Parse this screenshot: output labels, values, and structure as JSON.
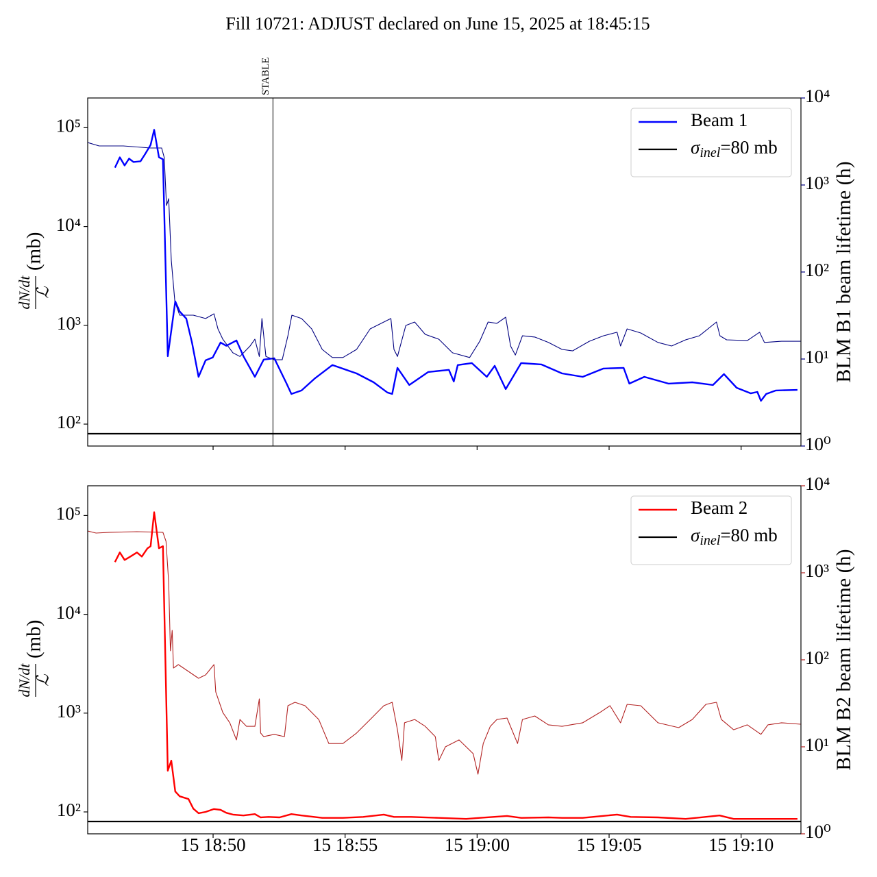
{
  "title": "Fill 10721: ADJUST declared on June 15, 2025 at 18:45:15",
  "chart_data": [
    {
      "type": "line",
      "ylabel": {
        "numerator": "dN/dt",
        "denominator": "ℒ",
        "unit": "(mb)"
      },
      "y2label": "BLM B1 beam lifetime (h)",
      "y2color": "#000080",
      "logy": true,
      "logy2": true,
      "ylim": [
        60,
        200000
      ],
      "yticks": [
        {
          "value": 100,
          "label": "10²"
        },
        {
          "value": 1000,
          "label": "10³"
        },
        {
          "value": 10000,
          "label": "10⁴"
        },
        {
          "value": 100000,
          "label": "10⁵"
        }
      ],
      "y2lim": [
        1,
        10000
      ],
      "y2ticks": [
        {
          "value": 1,
          "label": "10⁰"
        },
        {
          "value": 10,
          "label": "10¹"
        },
        {
          "value": 100,
          "label": "10²"
        },
        {
          "value": 1000,
          "label": "10³"
        },
        {
          "value": 10000,
          "label": "10⁴"
        }
      ],
      "legend": "upper right",
      "annotations": [
        {
          "text": "STABLE",
          "x": "18:52:16"
        }
      ],
      "hline": {
        "symbol": "σ",
        "subscript": "inel",
        "text": "=80 mb",
        "value": 80,
        "color": "#000000"
      },
      "series": [
        {
          "name": "Beam 1",
          "color": "#0000ff",
          "x": [
            "18:46:17",
            "18:46:28",
            "18:46:39",
            "18:46:49",
            "18:46:59",
            "18:47:15",
            "18:47:26",
            "18:47:38",
            "18:47:46",
            "18:47:57",
            "18:48:06",
            "18:48:17",
            "18:48:34",
            "18:48:44",
            "18:48:59",
            "18:49:12",
            "18:49:27",
            "18:49:43",
            "18:49:59",
            "18:50:17",
            "18:50:30",
            "18:50:53",
            "18:51:09",
            "18:51:35",
            "18:51:55",
            "18:52:19",
            "18:52:47",
            "18:52:58",
            "18:53:21",
            "18:53:52",
            "18:54:31",
            "18:55:26",
            "18:56:05",
            "18:56:36",
            "18:56:47",
            "18:56:59",
            "18:57:26",
            "18:58:09",
            "18:58:56",
            "18:59:07",
            "18:59:16",
            "18:59:48",
            "19:00:22",
            "19:00:40",
            "19:01:05",
            "19:01:40",
            "19:02:26",
            "19:03:13",
            "19:04:00",
            "19:04:47",
            "19:05:33",
            "19:05:46",
            "19:06:20",
            "19:07:15",
            "19:08:09",
            "19:08:56",
            "19:09:21",
            "19:09:50",
            "19:10:22",
            "19:10:37",
            "19:10:45",
            "19:10:57",
            "19:11:19",
            "19:12:08"
          ],
          "values": [
            39500,
            50200,
            41500,
            48700,
            45000,
            45700,
            54500,
            67000,
            95300,
            50200,
            48000,
            487,
            1750,
            1380,
            1170,
            670,
            301,
            442,
            472,
            670,
            620,
            703,
            487,
            301,
            450,
            464,
            257,
            202,
            219,
            292,
            396,
            326,
            265,
            209,
            202,
            371,
            249,
            337,
            354,
            270,
            396,
            415,
            301,
            389,
            226,
            415,
            402,
            326,
            301,
            365,
            371,
            257,
            301,
            257,
            265,
            249,
            321,
            233,
            205,
            212,
            172,
            202,
            219,
            222
          ]
        },
        {
          "color": "#000080",
          "axis": "y2",
          "x": [
            "18:45:15",
            "18:45:41",
            "18:46:36",
            "18:47:38",
            "18:48:03",
            "18:48:09",
            "18:48:14",
            "18:48:19",
            "18:48:25",
            "18:48:33",
            "18:48:44",
            "18:49:15",
            "18:49:43",
            "18:50:02",
            "18:50:11",
            "18:50:22",
            "18:50:45",
            "18:51:01",
            "18:51:24",
            "18:51:35",
            "18:51:45",
            "18:51:51",
            "18:52:00",
            "18:52:19",
            "18:52:37",
            "18:52:50",
            "18:52:59",
            "18:53:21",
            "18:53:44",
            "18:54:08",
            "18:54:31",
            "18:54:55",
            "18:55:26",
            "18:55:57",
            "18:56:28",
            "18:56:44",
            "18:56:51",
            "18:56:59",
            "18:57:18",
            "18:57:38",
            "18:58:02",
            "18:58:33",
            "18:59:04",
            "18:59:43",
            "19:00:06",
            "19:00:25",
            "19:00:45",
            "19:01:05",
            "19:01:16",
            "19:01:27",
            "19:01:43",
            "19:02:11",
            "19:02:42",
            "19:03:13",
            "19:03:37",
            "19:04:15",
            "19:04:47",
            "19:05:18",
            "19:05:26",
            "19:05:41",
            "19:06:12",
            "19:06:51",
            "19:07:22",
            "19:07:54",
            "19:08:25",
            "19:09:04",
            "19:09:12",
            "19:09:27",
            "19:10:14",
            "19:10:42",
            "19:10:53",
            "19:11:32",
            "19:12:15"
          ],
          "values": [
            3080,
            2810,
            2810,
            2660,
            2660,
            2070,
            580,
            696,
            136,
            45.9,
            31.9,
            31.9,
            29.2,
            33.1,
            22.2,
            16.9,
            11.8,
            10.7,
            14.1,
            16.9,
            10.7,
            29.2,
            10.7,
            9.8,
            9.8,
            18.5,
            31.9,
            29.2,
            22.2,
            12.9,
            10.4,
            10.4,
            12.9,
            22.2,
            26.6,
            29.2,
            12.9,
            10.7,
            24.3,
            26.6,
            19.2,
            16.9,
            11.8,
            10.4,
            16.0,
            26.6,
            25.7,
            30.2,
            14.1,
            11.1,
            18.5,
            17.9,
            15.5,
            12.9,
            12.4,
            16.0,
            18.5,
            20.3,
            14.1,
            22.2,
            19.9,
            15.5,
            14.1,
            16.6,
            18.5,
            26.6,
            18.5,
            16.6,
            16.3,
            20.3,
            15.5,
            16.0,
            16.0
          ]
        }
      ]
    },
    {
      "type": "line",
      "ylabel": {
        "numerator": "dN/dt",
        "denominator": "ℒ",
        "unit": "(mb)"
      },
      "y2label": "BLM B2 beam lifetime (h)",
      "y2color": "#b22222",
      "logy": true,
      "logy2": true,
      "xlim": [
        "18:45:15",
        "19:12:16"
      ],
      "xticks": [
        {
          "value": "18:50:00",
          "label": "15 18:50"
        },
        {
          "value": "18:55:00",
          "label": "15 18:55"
        },
        {
          "value": "19:00:00",
          "label": "15 19:00"
        },
        {
          "value": "19:05:00",
          "label": "15 19:05"
        },
        {
          "value": "19:10:00",
          "label": "15 19:10"
        }
      ],
      "ylim": [
        60,
        200000
      ],
      "yticks": [
        {
          "value": 100,
          "label": "10²"
        },
        {
          "value": 1000,
          "label": "10³"
        },
        {
          "value": 10000,
          "label": "10⁴"
        },
        {
          "value": 100000,
          "label": "10⁵"
        }
      ],
      "y2lim": [
        1,
        10000
      ],
      "y2ticks": [
        {
          "value": 1,
          "label": "10⁰"
        },
        {
          "value": 10,
          "label": "10¹"
        },
        {
          "value": 100,
          "label": "10²"
        },
        {
          "value": 1000,
          "label": "10³"
        },
        {
          "value": 10000,
          "label": "10⁴"
        }
      ],
      "legend": "upper right",
      "hline": {
        "symbol": "σ",
        "subscript": "inel",
        "text": "=80 mb",
        "value": 80,
        "color": "#000000"
      },
      "series": [
        {
          "name": "Beam 2",
          "color": "#ff0000",
          "x": [
            "18:46:17",
            "18:46:28",
            "18:46:39",
            "18:46:52",
            "18:47:07",
            "18:47:18",
            "18:47:31",
            "18:47:38",
            "18:47:46",
            "18:47:57",
            "18:48:06",
            "18:48:17",
            "18:48:25",
            "18:48:34",
            "18:48:44",
            "18:49:04",
            "18:49:15",
            "18:49:27",
            "18:49:43",
            "18:50:02",
            "18:50:17",
            "18:50:30",
            "18:50:45",
            "18:51:09",
            "18:51:35",
            "18:51:48",
            "18:52:06",
            "18:52:31",
            "18:52:58",
            "18:53:21",
            "18:54:08",
            "18:54:55",
            "18:55:41",
            "18:56:28",
            "18:56:51",
            "18:57:30",
            "18:58:33",
            "18:59:35",
            "19:00:06",
            "19:01:08",
            "19:01:40",
            "19:02:42",
            "19:03:13",
            "19:04:00",
            "19:05:18",
            "19:05:49",
            "19:06:51",
            "19:07:54",
            "19:09:11",
            "19:09:43",
            "19:11:01",
            "19:12:08"
          ],
          "values": [
            33800,
            42300,
            35500,
            38400,
            42300,
            38400,
            46600,
            48900,
            108000,
            46600,
            48900,
            261,
            331,
            161,
            144,
            135,
            108,
            97,
            100,
            107,
            105,
            98,
            94,
            92,
            95,
            88,
            89,
            88,
            95,
            92,
            87,
            87,
            89,
            94,
            89,
            89,
            87,
            85,
            87,
            91,
            87,
            88,
            87,
            87,
            94,
            89,
            88,
            85,
            92,
            85,
            85,
            85
          ]
        },
        {
          "color": "#b22222",
          "axis": "y2",
          "x": [
            "18:45:15",
            "18:45:34",
            "18:46:05",
            "18:47:07",
            "18:48:06",
            "18:48:13",
            "18:48:19",
            "18:48:23",
            "18:48:27",
            "18:48:30",
            "18:48:41",
            "18:49:04",
            "18:49:27",
            "18:49:43",
            "18:50:02",
            "18:50:06",
            "18:50:22",
            "18:50:38",
            "18:50:53",
            "18:51:01",
            "18:51:16",
            "18:51:35",
            "18:51:45",
            "18:51:48",
            "18:51:55",
            "18:52:19",
            "18:52:42",
            "18:52:50",
            "18:53:06",
            "18:53:29",
            "18:54:00",
            "18:54:23",
            "18:54:55",
            "18:55:26",
            "18:55:57",
            "18:56:28",
            "18:56:47",
            "18:56:59",
            "18:57:09",
            "18:57:15",
            "18:57:38",
            "18:58:02",
            "18:58:25",
            "18:58:33",
            "18:58:48",
            "18:59:19",
            "18:59:51",
            "19:00:02",
            "19:00:14",
            "19:00:30",
            "19:00:45",
            "19:01:08",
            "19:01:32",
            "19:01:43",
            "19:02:11",
            "19:02:42",
            "19:03:13",
            "19:04:00",
            "19:04:39",
            "19:05:02",
            "19:05:26",
            "19:05:41",
            "19:06:12",
            "19:06:51",
            "19:07:38",
            "19:08:09",
            "19:08:40",
            "19:09:04",
            "19:09:15",
            "19:09:43",
            "19:10:14",
            "19:10:45",
            "19:11:01",
            "19:11:32",
            "19:12:15"
          ],
          "values": [
            3020,
            2860,
            2920,
            2970,
            2920,
            2300,
            776,
            127,
            218,
            80.5,
            88.1,
            73.5,
            61.3,
            67.1,
            88.1,
            42.7,
            24.8,
            18.9,
            12.0,
            20.6,
            17.2,
            17.2,
            35.6,
            14.4,
            13.1,
            13.9,
            13.1,
            29.7,
            32.5,
            29.7,
            20.6,
            10.9,
            10.9,
            14.4,
            20.6,
            29.7,
            32.5,
            15.7,
            6.96,
            18.9,
            20.6,
            17.2,
            13.1,
            6.96,
            10.0,
            12.0,
            8.34,
            4.84,
            10.9,
            17.2,
            20.6,
            21.4,
            10.9,
            20.6,
            22.6,
            17.9,
            17.2,
            18.9,
            24.8,
            29.7,
            18.9,
            30.8,
            29.7,
            18.9,
            16.6,
            20.6,
            30.8,
            32.5,
            20.6,
            15.7,
            17.9,
            13.9,
            17.9,
            18.9,
            18.2
          ]
        }
      ]
    }
  ]
}
